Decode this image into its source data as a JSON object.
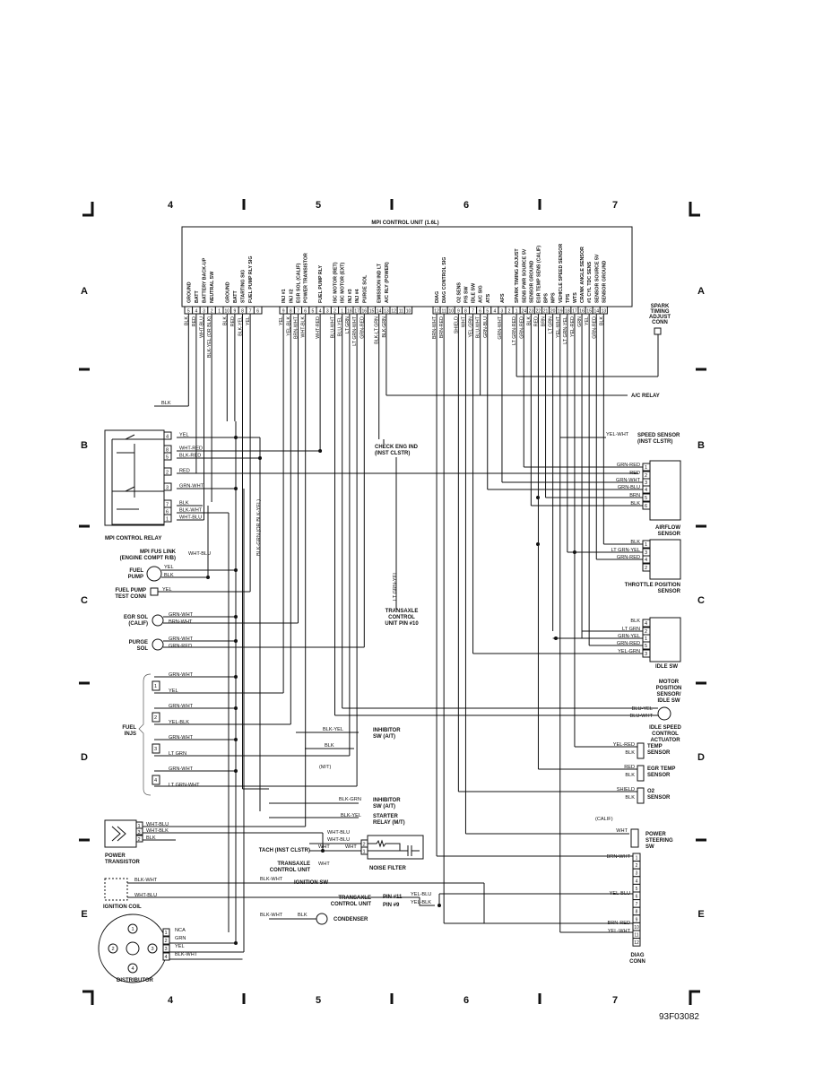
{
  "grid": {
    "columns": [
      "4",
      "5",
      "6",
      "7"
    ],
    "rows": [
      "A",
      "B",
      "C",
      "D",
      "E"
    ]
  },
  "control_unit": {
    "title": "MPI CONTROL UNIT (1.6L)",
    "groups": [
      [
        {
          "pin": "5",
          "signal": "GROUND",
          "wire": "BLK"
        },
        {
          "pin": "4",
          "signal": "BATT",
          "wire": "RED"
        },
        {
          "pin": "3",
          "signal": "BATTERY BACK-UP",
          "wire": "WHT-BLU"
        },
        {
          "pin": "2",
          "signal": "NEUTRAL SW",
          "wire": "BLK-YEL (OR BLK)"
        },
        {
          "pin": "1",
          "signal": "",
          "wire": ""
        },
        {
          "pin": "10",
          "signal": "GROUND",
          "wire": "BLK"
        },
        {
          "pin": "9",
          "signal": "BATT",
          "wire": "RED"
        },
        {
          "pin": "8",
          "signal": "STARTING SIG",
          "wire": "BLK-YEL"
        },
        {
          "pin": "7",
          "signal": "FUEL PUMP RLY SIG",
          "wire": "YEL"
        },
        {
          "pin": "6",
          "signal": "",
          "wire": ""
        }
      ],
      [
        {
          "pin": "9",
          "signal": "INJ #1",
          "wire": "YEL"
        },
        {
          "pin": "8",
          "signal": "INJ #2",
          "wire": "YEL-BLK"
        },
        {
          "pin": "7",
          "signal": "EGR SOL (CALIF)",
          "wire": "BRN-WHT"
        },
        {
          "pin": "6",
          "signal": "POWER TRANSISTOR",
          "wire": "WHT-BLK"
        },
        {
          "pin": "5",
          "signal": "",
          "wire": ""
        },
        {
          "pin": "4",
          "signal": "FUEL PUMP RLY",
          "wire": "WHT-RED"
        },
        {
          "pin": "3",
          "signal": "",
          "wire": ""
        },
        {
          "pin": "2",
          "signal": "ISC MOTOR (RET)",
          "wire": "BLU-WHT"
        },
        {
          "pin": "1",
          "signal": "ISC MOTOR (EXT)",
          "wire": "BLU-YEL"
        },
        {
          "pin": "18",
          "signal": "INJ #3",
          "wire": "LT GRN"
        },
        {
          "pin": "17",
          "signal": "INJ #4",
          "wire": "LT GRN-WHT"
        },
        {
          "pin": "16",
          "signal": "PURGE SOL",
          "wire": "GRN-RED"
        },
        {
          "pin": "15",
          "signal": "",
          "wire": ""
        },
        {
          "pin": "14",
          "signal": "EMISSION IND LT",
          "wire": "BLK-LT GRN"
        },
        {
          "pin": "13",
          "signal": "A/C RLY (POWER)",
          "wire": "BLK-GRN"
        },
        {
          "pin": "12",
          "signal": "",
          "wire": ""
        },
        {
          "pin": "11",
          "signal": "",
          "wire": ""
        },
        {
          "pin": "10",
          "signal": "",
          "wire": ""
        }
      ],
      [
        {
          "pin": "12",
          "signal": "DIAG",
          "wire": "BRN-WHT"
        },
        {
          "pin": "11",
          "signal": "DIAG CONTROL SIG",
          "wire": "BRN-RED"
        },
        {
          "pin": "10",
          "signal": "",
          "wire": ""
        },
        {
          "pin": "9",
          "signal": "O2 SENS",
          "wire": "SHIELD"
        },
        {
          "pin": "8",
          "signal": "P/S SW",
          "wire": "WHT"
        },
        {
          "pin": "7",
          "signal": "IDLE SW",
          "wire": "YEL-GRN"
        },
        {
          "pin": "6",
          "signal": "A/C SIG",
          "wire": "BLU-WHT"
        },
        {
          "pin": "5",
          "signal": "ATS",
          "wire": "GRN-BLU"
        },
        {
          "pin": "4",
          "signal": "",
          "wire": ""
        },
        {
          "pin": "3",
          "signal": "AFS",
          "wire": "GRN-WHT"
        },
        {
          "pin": "2",
          "signal": "",
          "wire": ""
        },
        {
          "pin": "1",
          "signal": "SPARK TIMING ADJUST",
          "wire": "LT GRN-RED"
        },
        {
          "pin": "24",
          "signal": "SENS PWR SOURCE 5V",
          "wire": "GRN-RED"
        },
        {
          "pin": "23",
          "signal": "SENSOR GROUND",
          "wire": "BLK"
        },
        {
          "pin": "22",
          "signal": "EGR TEMP SENS (CALIF)",
          "wire": "RED"
        },
        {
          "pin": "21",
          "signal": "BPS",
          "wire": "BRN"
        },
        {
          "pin": "20",
          "signal": "MPS",
          "wire": "LT GRN"
        },
        {
          "pin": "19",
          "signal": "VEHICLE SPEED SENSOR",
          "wire": "YEL-WHT"
        },
        {
          "pin": "18",
          "signal": "TPS",
          "wire": "LT GRN-YEL"
        },
        {
          "pin": "17",
          "signal": "WTS",
          "wire": "YEL-RED"
        },
        {
          "pin": "16",
          "signal": "CRANK ANGLE SENSOR",
          "wire": "GRN"
        },
        {
          "pin": "15",
          "signal": "#1 CYL TDC SENS",
          "wire": "YEL"
        },
        {
          "pin": "14",
          "signal": "SENSOR SOURCE 5V",
          "wire": "GRN-RED"
        },
        {
          "pin": "13",
          "signal": "SENSOR GROUND",
          "wire": "BLK"
        }
      ]
    ]
  },
  "left": {
    "ground_blk": "BLK",
    "relay": {
      "label": "MPI CONTROL RELAY",
      "pins": [
        {
          "pin": "4",
          "wire": "YEL"
        },
        {
          "pin": "8",
          "wire": "WHT-RED"
        },
        {
          "pin": "5",
          "wire": "BLK-RED"
        },
        {
          "pin": "2",
          "wire": "RED"
        },
        {
          "pin": "3",
          "wire": "GRN-WHT"
        },
        {
          "pin": "7",
          "wire": "BLK"
        },
        {
          "pin": "6",
          "wire": "BLK-WHT"
        },
        {
          "pin": "1",
          "wire": "WHT-BLU"
        }
      ]
    },
    "blk_grn_vertical": "BLK-GRN (OR BLK-YEL)",
    "fus_link": {
      "line1": "MPI FUS LINK",
      "line2": "(ENGINE COMPT R/B)",
      "wire": "WHT-BLU"
    },
    "fuel_pump": {
      "line1": "FUEL",
      "line2": "PUMP",
      "wire1": "YEL",
      "wire2": "BLK"
    },
    "test_conn": {
      "line1": "FUEL PUMP",
      "line2": "TEST CONN",
      "wire": "YEL"
    },
    "egr_sol": {
      "line1": "EGR SOL",
      "line2": "(CALIF)",
      "wire1": "GRN-WHT",
      "wire2": "BRN-WHT"
    },
    "purge_sol": {
      "line1": "PURGE",
      "line2": "SOL",
      "wire1": "GRN-WHT",
      "wire2": "GRN-RED"
    },
    "fuel_injs": {
      "line1": "FUEL",
      "line2": "INJS",
      "items": [
        {
          "num": "1",
          "wire1": "GRN-WHT",
          "wire2": "YEL"
        },
        {
          "num": "2",
          "wire1": "GRN-WHT",
          "wire2": "YEL-BLK"
        },
        {
          "num": "3",
          "wire1": "GRN-WHT",
          "wire2": "LT GRN"
        },
        {
          "num": "4",
          "wire1": "GRN-WHT",
          "wire2": "LT GRN-WHT"
        }
      ]
    },
    "power_transistor": {
      "line1": "POWER",
      "line2": "TRANSISTOR",
      "pins": [
        {
          "pin": "1",
          "wire": "WHT-BLU"
        },
        {
          "pin": "3",
          "wire": "WHT-BLK"
        },
        {
          "pin": "2",
          "wire": "BLK"
        }
      ]
    },
    "ignition_coil": {
      "label": "IGNITION COIL",
      "wire1": "BLK-WHT",
      "wire2": "WHT-BLU"
    },
    "distributor": {
      "label": "DISTRIBUTOR",
      "terminals": [
        "1",
        "2",
        "3",
        "4"
      ],
      "pins": [
        {
          "pin": "1",
          "wire": "NCA"
        },
        {
          "pin": "2",
          "wire": "GRN"
        },
        {
          "pin": "3",
          "wire": "YEL"
        },
        {
          "pin": "4",
          "wire": "BLK-WHT"
        }
      ]
    }
  },
  "middle": {
    "check_eng": {
      "line1": "CHECK ENG IND",
      "line2": "(INST CLSTR)"
    },
    "transaxle_pin10": {
      "wire": "LT GRN-YEL",
      "line1": "TRANSAXLE",
      "line2": "CONTROL",
      "line3": "UNIT PIN #10"
    },
    "inhibitor_at_1": {
      "wire": "BLK-YEL",
      "line1": "INHIBITOR",
      "line2": "SW (A/T)",
      "wire2": "BLK",
      "mt": "(M/T)"
    },
    "inhibitor_at_2": {
      "wire": "BLK-GRN",
      "line1": "INHIBITOR",
      "line2": "SW (A/T)"
    },
    "starter_relay": {
      "wire": "BLK-YEL",
      "line1": "STARTER",
      "line2": "RELAY (M/T)"
    },
    "noise_filter": {
      "label": "NOISE FILTER",
      "wire1": "WHT-BLU",
      "wire2": "WHT-BLU",
      "pin2": "2",
      "pin1": "1",
      "wire3": "WHT"
    },
    "tach": {
      "label": "TACH (INST CLSTR)",
      "wire": "WHT"
    },
    "transaxle_cu": {
      "line1": "TRANSAXLE",
      "line2": "CONTROL UNIT",
      "wire": "WHT"
    },
    "ignition_sw": {
      "wire": "BLK-WHT",
      "label": "IGNITION SW"
    },
    "transaxle_pins": {
      "line1": "TRANSAXLE",
      "line2": "CONTROL UNIT",
      "pin11": "PIN #11",
      "pin9": "PIN #9",
      "wire11": "YEL-BLU",
      "wire9": "YEL-BLK"
    },
    "condenser": {
      "wire1": "BLK-WHT",
      "wire2": "BLK",
      "label": "CONDENSER"
    }
  },
  "right": {
    "spark_timing": {
      "line1": "SPARK",
      "line2": "TIMING",
      "line3": "ADJUST",
      "line4": "CONN"
    },
    "ac_relay": "A/C RELAY",
    "speed_sensor": {
      "wire": "YEL-WHT",
      "line1": "SPEED SENSOR",
      "line2": "(INST CLSTR)"
    },
    "airflow": {
      "line1": "AIRFLOW",
      "line2": "SENSOR",
      "pins": [
        {
          "pin": "1",
          "wire": "GRN-RED"
        },
        {
          "pin": "2",
          "wire": "RED"
        },
        {
          "pin": "3",
          "wire": "GRN-WHT"
        },
        {
          "pin": "4",
          "wire": "GRN-BLU"
        },
        {
          "pin": "5",
          "wire": "BRN"
        },
        {
          "pin": "6",
          "wire": "BLK"
        }
      ]
    },
    "tps": {
      "line1": "THROTTLE POSITION",
      "line2": "SENSOR",
      "pins": [
        {
          "pin": "1",
          "wire": "BLK"
        },
        {
          "pin": "3",
          "wire": "LT GRN-YEL"
        },
        {
          "pin": "4",
          "wire": "GRN-RED"
        },
        {
          "pin": "2",
          "wire": ""
        }
      ]
    },
    "motor_position": {
      "line1": "MOTOR",
      "line2": "POSITION",
      "line3": "SENSOR/",
      "line4": "IDLE SW",
      "idle_sw": "IDLE SW",
      "pins": [
        {
          "pin": "4",
          "wire": "BLK"
        },
        {
          "pin": "2",
          "wire": "LT GRN"
        },
        {
          "pin": "1",
          "wire": "GRN-YEL"
        },
        {
          "pin": "5",
          "wire": "GRN-RED"
        },
        {
          "pin": "3",
          "wire": "YEL-GRN"
        }
      ]
    },
    "isc": {
      "wire1": "BLU-YEL",
      "wire2": "BLU-WHT",
      "line1": "IDLE SPEED",
      "line2": "CONTROL",
      "line3": "ACTUATOR"
    },
    "temp": {
      "wire1": "YEL-RED",
      "wire2": "BLK",
      "line1": "TEMP",
      "line2": "SENSOR"
    },
    "egr_temp": {
      "wire1": "RED",
      "wire2": "BLK",
      "line1": "EGR TEMP",
      "line2": "SENSOR"
    },
    "o2": {
      "wire1": "SHIELD",
      "wire2": "BLK",
      "line1": "O2",
      "line2": "SENSOR",
      "calif": "(CALIF)"
    },
    "power_steering": {
      "wire": "WHT",
      "line1": "POWER",
      "line2": "STEERING",
      "line3": "SW"
    },
    "diag": {
      "line1": "DIAG",
      "line2": "CONN",
      "pins": [
        "1",
        "2",
        "3",
        "4",
        "5",
        "6",
        "7",
        "8",
        "9",
        "10",
        "11",
        "12"
      ],
      "wires": {
        "p1": "BRN-WHT",
        "p6": "YEL-BLU",
        "p10": "BRN-RED",
        "p11": "YEL-WHT"
      }
    }
  },
  "figure_id": "93F03082"
}
